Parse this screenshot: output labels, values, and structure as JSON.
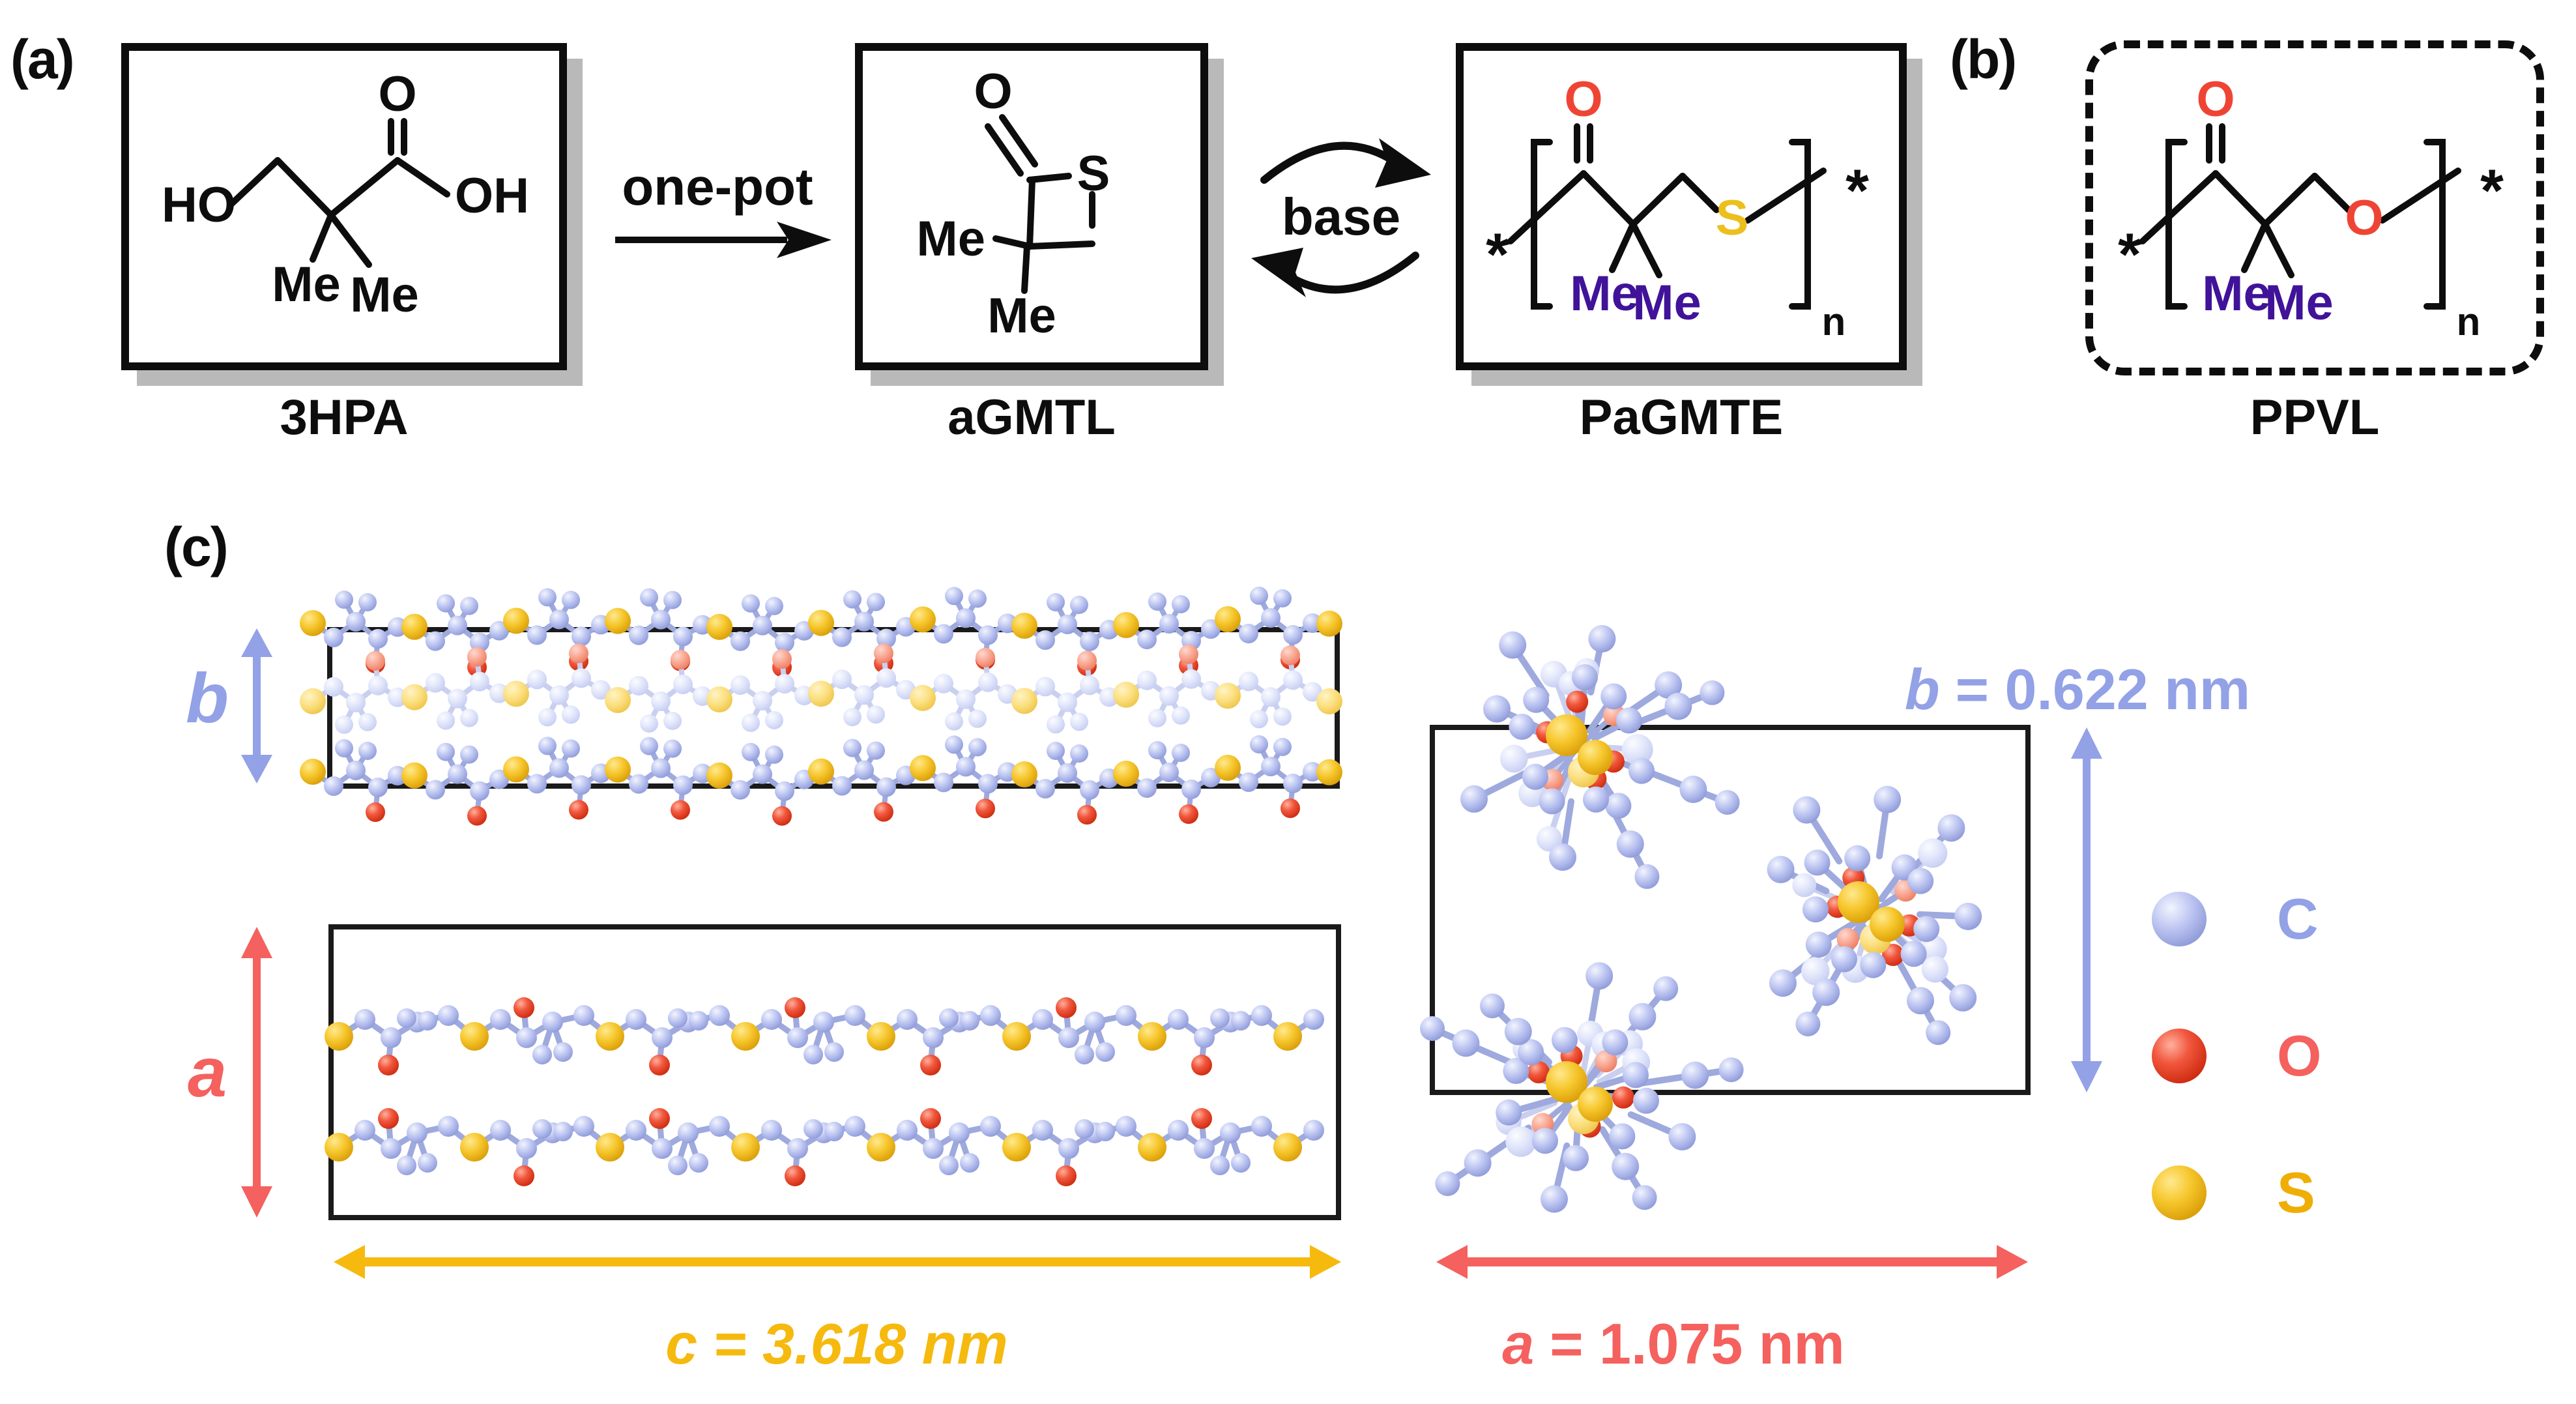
{
  "panel_a": {
    "label": "(a)",
    "arrow_label": "one-pot",
    "equilibrium_label": "base",
    "compounds": {
      "hpa": {
        "name": "3HPA",
        "ho": "HO",
        "o": "O",
        "oh": "OH",
        "me1": "Me",
        "me2": "Me"
      },
      "agmtl": {
        "name": "aGMTL",
        "o": "O",
        "s": "S",
        "me1": "Me",
        "me2": "Me"
      },
      "pagmte": {
        "name": "PaGMTE",
        "o": "O",
        "s": "S",
        "me1": "Me",
        "me2": "Me",
        "star_left": "*",
        "star_right": "*",
        "sub_n": "n"
      }
    }
  },
  "panel_b": {
    "label": "(b)",
    "compound": {
      "name": "PPVL",
      "o_carbonyl": "O",
      "o_chain": "O",
      "me1": "Me",
      "me2": "Me",
      "star_left": "*",
      "star_right": "*",
      "sub_n": "n"
    }
  },
  "panel_c": {
    "label": "(c)",
    "axis_letters": {
      "b_side": "b",
      "a_side": "a"
    },
    "dimensions": {
      "c_axis": {
        "symbol": "c",
        "rest": "= 3.618 nm"
      },
      "b_axis": {
        "symbol": "b",
        "rest": "= 0.622 nm"
      },
      "a_axis": {
        "symbol": "a",
        "rest": "= 1.075 nm"
      }
    },
    "legend": {
      "carbon": {
        "symbol": "C"
      },
      "oxygen": {
        "symbol": "O"
      },
      "sulfur": {
        "symbol": "S"
      }
    }
  },
  "colors": {
    "oxygen_red": "#ef4434",
    "sulfur_yellow": "#ecbf1c",
    "methyl_purple": "#401399",
    "periwinkle": "#93a1e6",
    "salmon": "#f4615e",
    "amber": "#f6b90e",
    "legend_sulfur_text": "#efae05",
    "bond": "#9ea9dd",
    "box_shadow": "#b9b9b9"
  }
}
